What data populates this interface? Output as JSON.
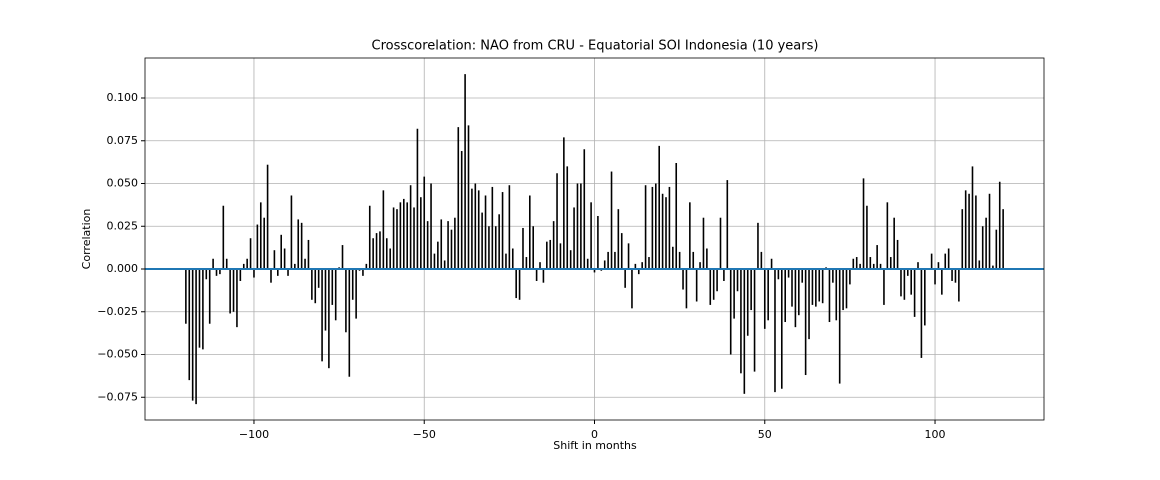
{
  "chart_data": {
    "type": "bar",
    "title": "Crosscorelation: NAO from CRU - Equatorial SOI Indonesia (10 years)",
    "xlabel": "Shift in months",
    "ylabel": "Correlation",
    "x": [
      -120,
      -119,
      -118,
      -117,
      -116,
      -115,
      -114,
      -113,
      -112,
      -111,
      -110,
      -109,
      -108,
      -107,
      -106,
      -105,
      -104,
      -103,
      -102,
      -101,
      -100,
      -99,
      -98,
      -97,
      -96,
      -95,
      -94,
      -93,
      -92,
      -91,
      -90,
      -89,
      -88,
      -87,
      -86,
      -85,
      -84,
      -83,
      -82,
      -81,
      -80,
      -79,
      -78,
      -77,
      -76,
      -75,
      -74,
      -73,
      -72,
      -71,
      -70,
      -69,
      -68,
      -67,
      -66,
      -65,
      -64,
      -63,
      -62,
      -61,
      -60,
      -59,
      -58,
      -57,
      -56,
      -55,
      -54,
      -53,
      -52,
      -51,
      -50,
      -49,
      -48,
      -47,
      -46,
      -45,
      -44,
      -43,
      -42,
      -41,
      -40,
      -39,
      -38,
      -37,
      -36,
      -35,
      -34,
      -33,
      -32,
      -31,
      -30,
      -29,
      -28,
      -27,
      -26,
      -25,
      -24,
      -23,
      -22,
      -21,
      -20,
      -19,
      -18,
      -17,
      -16,
      -15,
      -14,
      -13,
      -12,
      -11,
      -10,
      -9,
      -8,
      -7,
      -6,
      -5,
      -4,
      -3,
      -2,
      -1,
      0,
      1,
      2,
      3,
      4,
      5,
      6,
      7,
      8,
      9,
      10,
      11,
      12,
      13,
      14,
      15,
      16,
      17,
      18,
      19,
      20,
      21,
      22,
      23,
      24,
      25,
      26,
      27,
      28,
      29,
      30,
      31,
      32,
      33,
      34,
      35,
      36,
      37,
      38,
      39,
      40,
      41,
      42,
      43,
      44,
      45,
      46,
      47,
      48,
      49,
      50,
      51,
      52,
      53,
      54,
      55,
      56,
      57,
      58,
      59,
      60,
      61,
      62,
      63,
      64,
      65,
      66,
      67,
      68,
      69,
      70,
      71,
      72,
      73,
      74,
      75,
      76,
      77,
      78,
      79,
      80,
      81,
      82,
      83,
      84,
      85,
      86,
      87,
      88,
      89,
      90,
      91,
      92,
      93,
      94,
      95,
      96,
      97,
      98,
      99,
      100,
      101,
      102,
      103,
      104,
      105,
      106,
      107,
      108,
      109,
      110,
      111,
      112,
      113,
      114,
      115,
      116,
      117,
      118,
      119,
      120
    ],
    "values": [
      -0.032,
      -0.065,
      -0.077,
      -0.079,
      -0.046,
      -0.047,
      -0.006,
      -0.032,
      0.006,
      -0.004,
      -0.003,
      0.037,
      0.006,
      -0.026,
      -0.025,
      -0.034,
      -0.007,
      0.003,
      0.006,
      0.018,
      -0.005,
      0.026,
      0.039,
      0.03,
      0.061,
      -0.008,
      0.011,
      -0.004,
      0.02,
      0.012,
      -0.004,
      0.043,
      0.003,
      0.029,
      0.027,
      0.006,
      0.017,
      -0.018,
      -0.02,
      -0.011,
      -0.054,
      -0.036,
      -0.058,
      -0.021,
      -0.03,
      0.001,
      0.014,
      -0.037,
      -0.063,
      -0.018,
      -0.029,
      -0.001,
      -0.004,
      0.003,
      0.037,
      0.018,
      0.021,
      0.022,
      0.046,
      0.018,
      0.012,
      0.036,
      0.035,
      0.039,
      0.041,
      0.039,
      0.049,
      0.036,
      0.082,
      0.042,
      0.054,
      0.028,
      0.05,
      0.009,
      0.016,
      0.029,
      0.005,
      0.028,
      0.023,
      0.03,
      0.083,
      0.069,
      0.114,
      0.084,
      0.047,
      0.05,
      0.046,
      0.033,
      0.043,
      0.025,
      0.048,
      0.025,
      0.032,
      0.045,
      0.009,
      0.049,
      0.012,
      -0.017,
      -0.018,
      0.024,
      0.007,
      0.043,
      0.025,
      -0.007,
      0.004,
      -0.008,
      0.016,
      0.017,
      0.028,
      0.056,
      0.015,
      0.077,
      0.06,
      0.011,
      0.036,
      0.05,
      0.05,
      0.07,
      0.006,
      0.039,
      -0.002,
      0.031,
      -0.001,
      0.005,
      0.01,
      0.057,
      0.01,
      0.035,
      0.021,
      -0.011,
      0.015,
      -0.023,
      0.003,
      -0.003,
      0.004,
      0.049,
      0.007,
      0.048,
      0.05,
      0.072,
      0.044,
      0.042,
      0.048,
      0.013,
      0.062,
      0.01,
      -0.012,
      -0.023,
      0.039,
      0.01,
      -0.019,
      0.004,
      0.03,
      0.012,
      -0.021,
      -0.018,
      -0.013,
      0.03,
      -0.007,
      0.052,
      -0.05,
      -0.029,
      -0.013,
      -0.061,
      -0.073,
      -0.039,
      -0.024,
      -0.06,
      0.027,
      0.01,
      -0.035,
      -0.03,
      0.006,
      -0.072,
      -0.006,
      -0.07,
      -0.031,
      -0.005,
      -0.022,
      -0.034,
      -0.027,
      -0.008,
      -0.062,
      -0.041,
      -0.021,
      -0.022,
      -0.019,
      -0.02,
      0.001,
      -0.031,
      -0.008,
      -0.03,
      -0.067,
      -0.024,
      -0.023,
      -0.009,
      0.006,
      0.007,
      0.003,
      0.053,
      0.037,
      0.007,
      0.003,
      0.014,
      0.003,
      -0.021,
      0.039,
      0.007,
      0.03,
      0.017,
      -0.016,
      -0.018,
      -0.004,
      -0.015,
      -0.028,
      0.004,
      -0.052,
      -0.033,
      0.0,
      0.009,
      -0.009,
      0.004,
      -0.015,
      0.009,
      0.012,
      -0.007,
      -0.008,
      -0.019,
      0.035,
      0.046,
      0.044,
      0.06,
      0.043,
      0.005,
      0.025,
      0.03,
      0.044,
      0.002,
      0.023,
      0.051,
      0.035
    ],
    "color": "#000000",
    "hline": {
      "y": 0,
      "color": "#1f77b4"
    },
    "xlim": [
      -132,
      132
    ],
    "ylim": [
      -0.0883,
      0.1234
    ],
    "xticks": [
      {
        "value": -100,
        "label": "−100"
      },
      {
        "value": -50,
        "label": "−50"
      },
      0,
      50,
      100
    ],
    "yticks": [
      {
        "value": -0.075,
        "label": "−0.075"
      },
      {
        "value": -0.05,
        "label": "−0.050"
      },
      {
        "value": -0.025,
        "label": "−0.025"
      },
      {
        "value": 0,
        "label": "0.000"
      },
      0.025,
      {
        "value": 0.05,
        "label": "0.050"
      },
      0.075,
      {
        "value": 0.1,
        "label": "0.100"
      }
    ],
    "grid": true
  }
}
